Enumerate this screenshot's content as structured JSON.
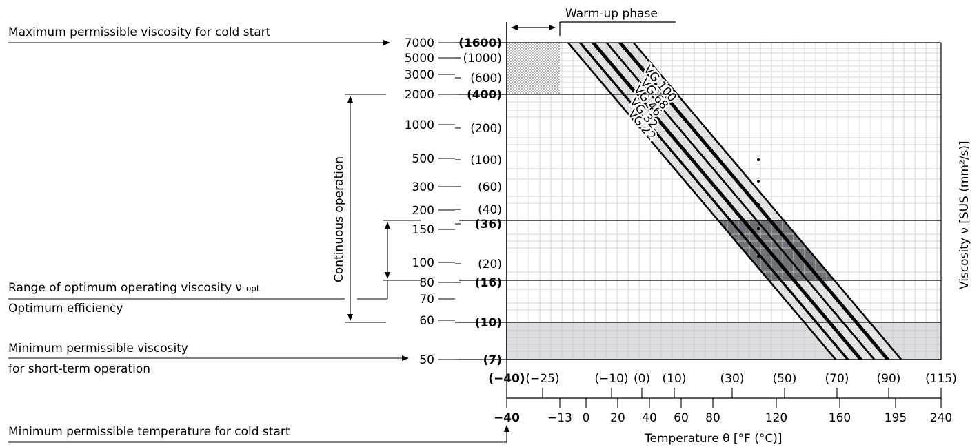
{
  "chart_data": {
    "type": "line",
    "x_axis": {
      "label": "Temperature θ [°F (°C)]",
      "range_F": [
        -40,
        240
      ],
      "ticks_F": [
        "−40",
        "−13",
        "0",
        "20",
        "40",
        "60",
        "80",
        "120",
        "160",
        "195",
        "240"
      ],
      "ticks_C": [
        "(−40)",
        "(−25)",
        "(−10)",
        "(0)",
        "(10)",
        "(30)",
        "(50)",
        "(70)",
        "(90)",
        "(115)"
      ],
      "scale": "linear"
    },
    "y_axis": {
      "label": "Viscosity ν [SUS (mm²/s)]",
      "scale": "log",
      "range_SUS": [
        50,
        7000
      ],
      "ticks_SUS": [
        "7000",
        "5000",
        "3000",
        "2000",
        "1000",
        "500",
        "300",
        "200",
        "150",
        "100",
        "80",
        "70",
        "60",
        "50"
      ],
      "ticks_mm2s": [
        "(1600)",
        "(1000)",
        "(600)",
        "(400)",
        "(200)",
        "(100)",
        "(60)",
        "(40)",
        "(36)",
        "(20)",
        "(16)",
        "(10)",
        "(7)"
      ]
    },
    "top_label": "Warm-up phase",
    "series": [
      {
        "name": "VG 22"
      },
      {
        "name": "VG 32"
      },
      {
        "name": "VG 46"
      },
      {
        "name": "VG 68"
      },
      {
        "name": "VG 100"
      }
    ],
    "annotations": {
      "max_cold_start": "Maximum permissible viscosity for cold start",
      "continuous": "Continuous operation",
      "optimum_range": "Range of optimum operating viscosity ν",
      "optimum_sub": "opt",
      "optimum_eff": "Optimum efficiency",
      "min_short_1": "Minimum permissible viscosity",
      "min_short_2": "for short-term operation",
      "min_temp_cold": "Minimum permissible temperature for cold start"
    },
    "grid": true
  }
}
